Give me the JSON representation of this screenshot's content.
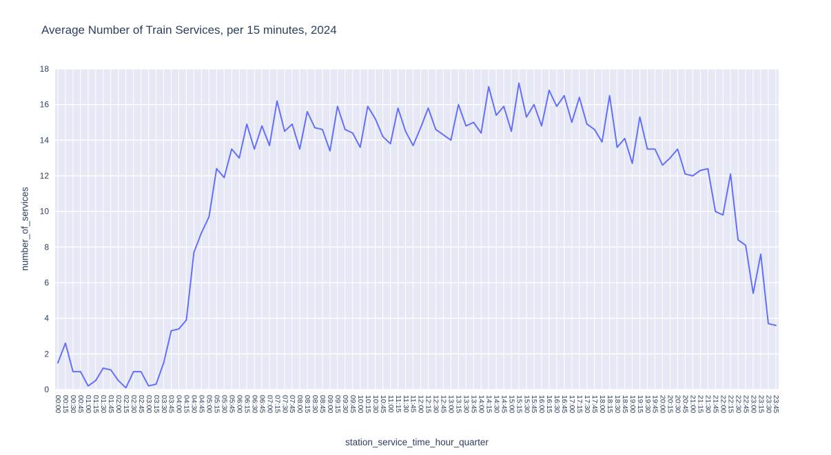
{
  "chart_data": {
    "type": "line",
    "title": "Average Number of Train Services, per 15 minutes, 2024",
    "xlabel": "station_service_time_hour_quarter",
    "ylabel": "number_of_services",
    "ylim": [
      0,
      18
    ],
    "yticks": [
      0,
      2,
      4,
      6,
      8,
      10,
      12,
      14,
      16,
      18
    ],
    "legend_position": "none",
    "grid": "on",
    "categories": [
      "00:00",
      "00:15",
      "00:30",
      "00:45",
      "01:00",
      "01:15",
      "01:30",
      "01:45",
      "02:00",
      "02:15",
      "02:30",
      "02:45",
      "03:00",
      "03:15",
      "03:30",
      "03:45",
      "04:00",
      "04:15",
      "04:30",
      "04:45",
      "05:00",
      "05:15",
      "05:30",
      "05:45",
      "06:00",
      "06:15",
      "06:30",
      "06:45",
      "07:00",
      "07:15",
      "07:30",
      "07:45",
      "08:00",
      "08:15",
      "08:30",
      "08:45",
      "09:00",
      "09:15",
      "09:30",
      "09:45",
      "10:00",
      "10:15",
      "10:30",
      "10:45",
      "11:00",
      "11:15",
      "11:30",
      "11:45",
      "12:00",
      "12:15",
      "12:30",
      "12:45",
      "13:00",
      "13:15",
      "13:30",
      "13:45",
      "14:00",
      "14:15",
      "14:30",
      "14:45",
      "15:00",
      "15:15",
      "15:30",
      "15:45",
      "16:00",
      "16:15",
      "16:30",
      "16:45",
      "17:00",
      "17:15",
      "17:30",
      "17:45",
      "18:00",
      "18:15",
      "18:30",
      "18:45",
      "19:00",
      "19:15",
      "19:30",
      "19:45",
      "20:00",
      "20:15",
      "20:30",
      "20:45",
      "21:00",
      "21:15",
      "21:30",
      "21:45",
      "22:00",
      "22:15",
      "22:30",
      "22:45",
      "23:00",
      "23:15",
      "23:30",
      "23:45"
    ],
    "values": [
      1.5,
      2.6,
      1.0,
      1.0,
      0.2,
      0.5,
      1.2,
      1.1,
      0.5,
      0.1,
      1.0,
      1.0,
      0.2,
      0.3,
      1.5,
      3.3,
      3.4,
      3.9,
      7.7,
      8.8,
      9.7,
      12.4,
      11.9,
      13.5,
      13.0,
      14.9,
      13.5,
      14.8,
      13.7,
      16.2,
      14.5,
      14.9,
      13.5,
      15.6,
      14.7,
      14.6,
      13.4,
      15.9,
      14.6,
      14.4,
      13.6,
      15.9,
      15.2,
      14.2,
      13.8,
      15.8,
      14.5,
      13.7,
      14.7,
      15.8,
      14.6,
      14.3,
      14.0,
      16.0,
      14.8,
      15.0,
      14.4,
      17.0,
      15.4,
      15.9,
      14.5,
      17.2,
      15.3,
      16.0,
      14.8,
      16.8,
      15.9,
      16.5,
      15.0,
      16.4,
      14.9,
      14.6,
      13.9,
      16.5,
      13.6,
      14.1,
      12.7,
      15.3,
      13.5,
      13.5,
      12.6,
      13.0,
      13.5,
      12.1,
      12.0,
      12.3,
      12.4,
      10.0,
      9.8,
      12.1,
      8.4,
      8.1,
      5.4,
      7.6,
      3.7,
      3.6
    ],
    "colors": {
      "line": "#636efa",
      "plot_bg": "#e6e9f5",
      "grid": "#ffffff",
      "text": "#2a3f5f"
    }
  }
}
